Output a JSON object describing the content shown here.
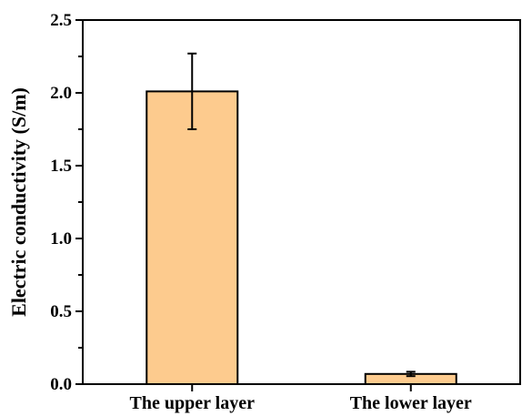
{
  "chart_data": {
    "type": "bar",
    "title": "",
    "xlabel": "",
    "ylabel": "Electric conductivity (S/m)",
    "categories": [
      "The upper layer",
      "The lower layer"
    ],
    "values": [
      2.01,
      0.07
    ],
    "errors": [
      0.26,
      0.015
    ],
    "ylim": [
      0,
      2.5
    ],
    "yticks": [
      0.0,
      0.5,
      1.0,
      1.5,
      2.0,
      2.5
    ],
    "ytick_labels": [
      "0.0",
      "0.5",
      "1.0",
      "1.5",
      "2.0",
      "2.5"
    ],
    "grid": false,
    "legend": "none",
    "bar_color": "#FDCB8E",
    "edge_color": "#000000"
  }
}
